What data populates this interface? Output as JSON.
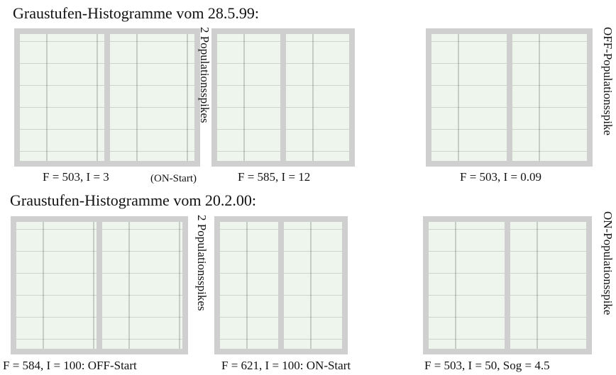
{
  "titles": [
    "Graustufen-Histogramme vom 28.5.99:",
    "Graustufen-Histogramme vom 20.2.00:"
  ],
  "side_labels": [
    "2 Populationsspikes",
    "OFF-Populationsspike",
    "2 Populationsspikes",
    "ON-Populationsspike"
  ],
  "captions": [
    "F = 503, I = 3",
    "(ON-Start)",
    "F = 585, I = 12",
    "F = 503, I = 0.09",
    "F = 584, I = 100: OFF-Start",
    "F = 621, I = 100: ON-Start",
    "F = 503, I = 50, Sog = 4.5"
  ]
}
